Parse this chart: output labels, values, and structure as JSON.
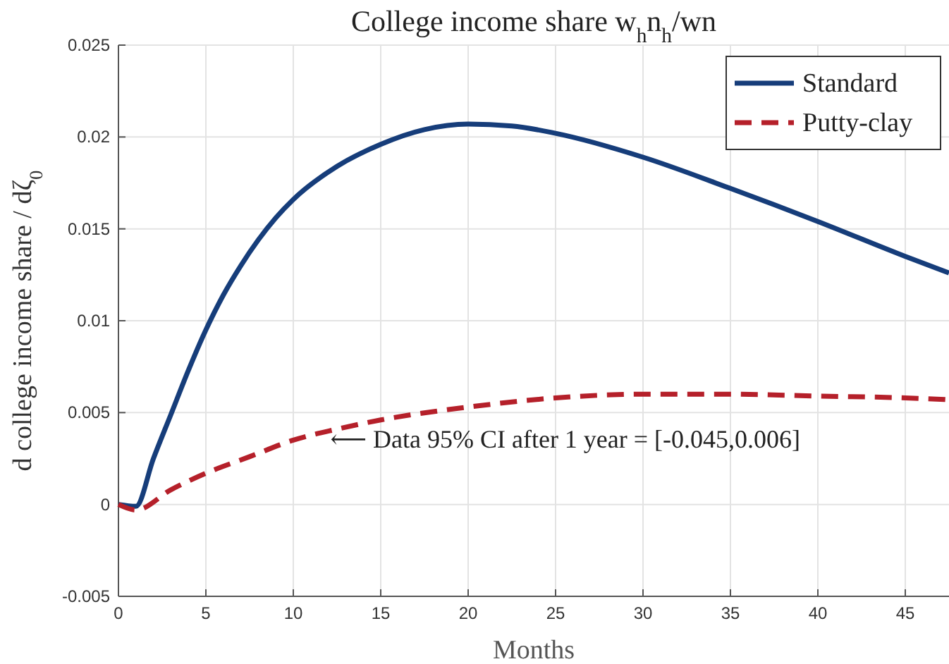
{
  "chart_data": {
    "type": "line",
    "title": "College income share w$_{h}$n$_{h}$/wn",
    "xlabel": "Months",
    "ylabel": "d college income share / dζ$_{0}$",
    "xlim": [
      0,
      47.5
    ],
    "xticks": [
      0,
      5,
      10,
      15,
      20,
      25,
      30,
      35,
      40,
      45
    ],
    "ylim": [
      -0.005,
      0.025
    ],
    "yticks": [
      -0.005,
      0,
      0.005,
      0.01,
      0.015,
      0.02,
      0.025
    ],
    "grid": true,
    "legend": "top right",
    "marker": "none",
    "annotations": [
      "⟵ Data 95% CI after 1 year = [-0.045,0.006]"
    ],
    "series": [
      {
        "name": "Standard",
        "color": "#163d7a",
        "line_style": "solid",
        "x": [
          0,
          1,
          2,
          3,
          4,
          5,
          6,
          7,
          8,
          9,
          10,
          12.5,
          15,
          17.5,
          20,
          22.5,
          25,
          30,
          35,
          40,
          45,
          47.5
        ],
        "values": [
          0,
          -0.0001,
          0.0025,
          0.0049,
          0.0073,
          0.0095,
          0.0114,
          0.013,
          0.0144,
          0.0156,
          0.0166,
          0.0184,
          0.0196,
          0.0204,
          0.0207,
          0.0206,
          0.0202,
          0.0189,
          0.0172,
          0.0154,
          0.0135,
          0.0126
        ]
      },
      {
        "name": "Putty-clay",
        "color": "#b5202a",
        "line_style": "dashed",
        "x": [
          0,
          1,
          3,
          5,
          7.5,
          10,
          12.5,
          15,
          20,
          25,
          30,
          35,
          40,
          45,
          47.5
        ],
        "values": [
          0,
          -0.0003,
          0.0008,
          0.0017,
          0.0026,
          0.0035,
          0.0041,
          0.0046,
          0.0053,
          0.0058,
          0.006,
          0.006,
          0.0059,
          0.0058,
          0.0057
        ]
      }
    ]
  }
}
